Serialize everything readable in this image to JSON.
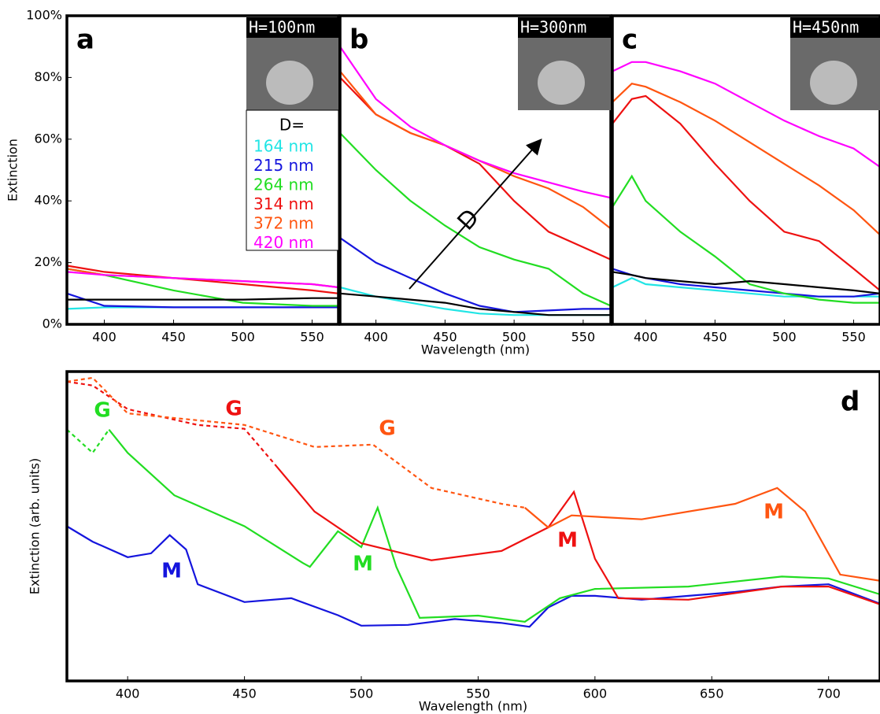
{
  "chart_data": [
    {
      "type": "line",
      "panel_label": "a",
      "inset_label": "H=100nm",
      "y_label": "Extinction",
      "legend_title": "D=",
      "xlim": [
        373,
        569
      ],
      "xticks": [
        400,
        450,
        500,
        550
      ],
      "ylim": [
        0,
        100
      ],
      "yticks": [
        {
          "value": 0,
          "label": "0%"
        },
        {
          "value": 20,
          "label": "20%"
        },
        {
          "value": 40,
          "label": "40%"
        },
        {
          "value": 60,
          "label": "60%"
        },
        {
          "value": 80,
          "label": "80%"
        },
        {
          "value": 100,
          "label": "100%"
        }
      ],
      "x": [
        373,
        400,
        450,
        500,
        550,
        569
      ],
      "series": [
        {
          "name": "164 nm",
          "color": "#22e5e5",
          "values": [
            5,
            5.5,
            5.5,
            5.5,
            5.5,
            5.5
          ]
        },
        {
          "name": "215 nm",
          "color": "#1515dd",
          "values": [
            10,
            6,
            5.5,
            5.5,
            5.5,
            5.5
          ]
        },
        {
          "name": "264 nm",
          "color": "#22dd22",
          "values": [
            18,
            16,
            11,
            7,
            6,
            6
          ]
        },
        {
          "name": "314 nm",
          "color": "#ee1111",
          "values": [
            19,
            17,
            15,
            13,
            11,
            10
          ]
        },
        {
          "name": "372 nm",
          "color": "#ff5511",
          "values": [
            18,
            16,
            15,
            14,
            13,
            12
          ]
        },
        {
          "name": "420 nm",
          "color": "#ff00ff",
          "values": [
            17,
            16,
            15,
            14,
            13,
            12
          ]
        },
        {
          "color": "#000000",
          "values": [
            8,
            8,
            8,
            8,
            8.5,
            8.5
          ]
        }
      ]
    },
    {
      "type": "line",
      "panel_label": "b",
      "inset_label": "H=300nm",
      "x_label": "Wavelength (nm)",
      "arrow_label": "D",
      "xlim": [
        374,
        570
      ],
      "xticks": [
        400,
        450,
        500,
        550
      ],
      "ylim": [
        0,
        100
      ],
      "x": [
        374,
        400,
        425,
        450,
        475,
        500,
        525,
        550,
        570
      ],
      "series": [
        {
          "color": "#22e5e5",
          "values": [
            12,
            9,
            7,
            5,
            3.5,
            3,
            3,
            3,
            3
          ]
        },
        {
          "color": "#1515dd",
          "values": [
            28,
            20,
            15,
            10,
            6,
            4,
            4.5,
            5,
            5
          ]
        },
        {
          "color": "#22dd22",
          "values": [
            62,
            50,
            40,
            32,
            25,
            21,
            18,
            10,
            6
          ]
        },
        {
          "color": "#ee1111",
          "values": [
            80,
            68,
            62,
            58,
            52,
            40,
            30,
            25,
            21
          ]
        },
        {
          "color": "#ff5511",
          "values": [
            82,
            68,
            62,
            58,
            53,
            48,
            44,
            38,
            31
          ]
        },
        {
          "color": "#ff00ff",
          "values": [
            90,
            73,
            64,
            58,
            53,
            49,
            46,
            43,
            41
          ]
        },
        {
          "color": "#000000",
          "values": [
            10,
            9,
            8,
            7,
            5,
            4,
            3,
            3,
            3
          ]
        }
      ]
    },
    {
      "type": "line",
      "panel_label": "c",
      "inset_label": "H=450nm",
      "xlim": [
        376,
        569
      ],
      "xticks": [
        400,
        450,
        500,
        550
      ],
      "ylim": [
        0,
        100
      ],
      "x": [
        376,
        390,
        400,
        425,
        450,
        475,
        500,
        525,
        550,
        569
      ],
      "series": [
        {
          "color": "#22e5e5",
          "values": [
            12,
            15,
            13,
            12,
            11,
            10,
            9,
            9,
            9,
            9
          ]
        },
        {
          "color": "#1515dd",
          "values": [
            18,
            16,
            15,
            13,
            12,
            11,
            10,
            9,
            9,
            10
          ]
        },
        {
          "color": "#22dd22",
          "values": [
            38,
            48,
            40,
            30,
            22,
            13,
            10,
            8,
            7,
            7
          ]
        },
        {
          "color": "#ee1111",
          "values": [
            65,
            73,
            74,
            65,
            52,
            40,
            30,
            27,
            18,
            11
          ]
        },
        {
          "color": "#ff5511",
          "values": [
            72,
            78,
            77,
            72,
            66,
            59,
            52,
            45,
            37,
            29
          ]
        },
        {
          "color": "#ff00ff",
          "values": [
            82,
            85,
            85,
            82,
            78,
            72,
            66,
            61,
            57,
            51
          ]
        },
        {
          "color": "#000000",
          "values": [
            17,
            16,
            15,
            14,
            13,
            14,
            13,
            12,
            11,
            10
          ]
        }
      ]
    },
    {
      "type": "line",
      "panel_label": "d",
      "y_label": "Extinction (arb. units)",
      "x_label": "Wavelength (nm)",
      "xlim": [
        374,
        722
      ],
      "xticks": [
        400,
        450,
        500,
        550,
        600,
        650,
        700
      ],
      "ylim": [
        0,
        8
      ],
      "series": [
        {
          "color": "#1515dd",
          "x": [
            374,
            385,
            400,
            410,
            418,
            425,
            430,
            450,
            470,
            490,
            500,
            520,
            540,
            560,
            572,
            580,
            590,
            600,
            620,
            640,
            660,
            680,
            700,
            722
          ],
          "values": [
            4.0,
            3.6,
            3.2,
            3.3,
            3.77,
            3.4,
            2.5,
            2.04,
            2.14,
            1.7,
            1.43,
            1.45,
            1.6,
            1.5,
            1.4,
            1.9,
            2.2,
            2.2,
            2.1,
            2.2,
            2.3,
            2.44,
            2.5,
            2.0
          ]
        },
        {
          "color": "#22dd22",
          "dashed": true,
          "x": [
            374,
            385,
            392
          ],
          "values": [
            6.5,
            5.9,
            6.5
          ]
        },
        {
          "color": "#22dd22",
          "x": [
            392,
            400,
            420,
            450,
            475,
            478,
            490,
            500,
            507,
            515,
            525,
            550,
            570,
            585,
            600,
            640,
            680,
            700,
            722
          ],
          "values": [
            6.5,
            5.9,
            4.8,
            4.0,
            3.05,
            2.95,
            3.87,
            3.46,
            4.48,
            2.95,
            1.63,
            1.69,
            1.53,
            2.14,
            2.38,
            2.44,
            2.7,
            2.65,
            2.24
          ]
        },
        {
          "color": "#ee1111",
          "dashed": true,
          "x": [
            374,
            385,
            400,
            430,
            450,
            463
          ],
          "values": [
            7.74,
            7.64,
            7.03,
            6.62,
            6.52,
            5.6
          ]
        },
        {
          "color": "#ee1111",
          "x": [
            463,
            480,
            500,
            530,
            560,
            580,
            591,
            600,
            610,
            640,
            680,
            700,
            722
          ],
          "values": [
            5.6,
            4.38,
            3.56,
            3.12,
            3.36,
            3.97,
            4.89,
            3.16,
            2.14,
            2.1,
            2.44,
            2.44,
            1.98
          ]
        },
        {
          "color": "#ff5511",
          "dashed": true,
          "x": [
            374,
            385,
            400,
            450,
            480,
            505,
            530,
            560,
            570
          ],
          "values": [
            7.74,
            7.84,
            6.92,
            6.62,
            6.05,
            6.11,
            4.99,
            4.58,
            4.48
          ]
        },
        {
          "color": "#ff5511",
          "x": [
            570,
            580,
            590,
            620,
            660,
            678,
            690,
            705,
            722
          ],
          "values": [
            4.48,
            3.97,
            4.28,
            4.18,
            4.58,
            4.99,
            4.38,
            2.75,
            2.59
          ]
        }
      ],
      "annotations": [
        {
          "text": "G",
          "color": "#22dd22"
        },
        {
          "text": "G",
          "color": "#ee1111"
        },
        {
          "text": "G",
          "color": "#ff5511"
        },
        {
          "text": "M",
          "color": "#1515dd"
        },
        {
          "text": "M",
          "color": "#22dd22"
        },
        {
          "text": "M",
          "color": "#ee1111"
        },
        {
          "text": "M",
          "color": "#ff5511"
        }
      ]
    }
  ]
}
